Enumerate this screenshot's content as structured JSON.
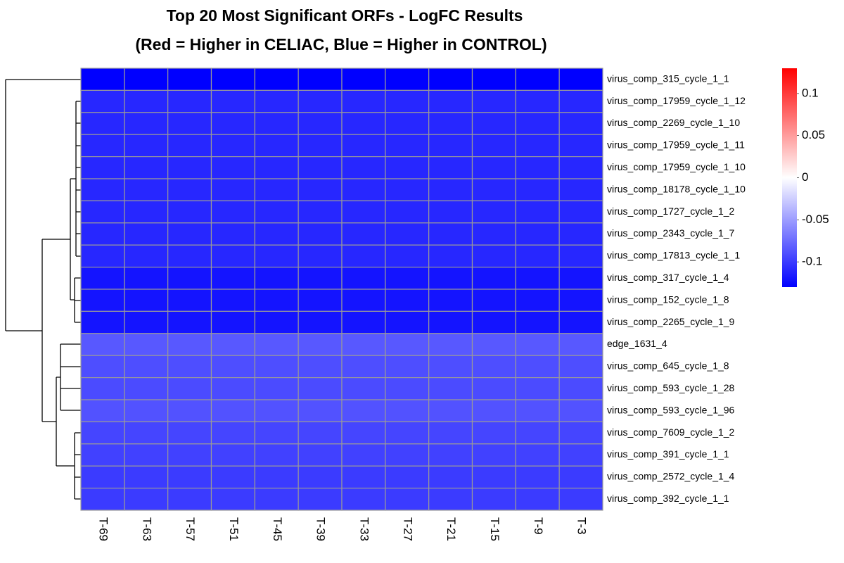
{
  "chart_data": {
    "type": "heatmap",
    "title": "Top 20 Most Significant ORFs - LogFC Results",
    "subtitle": "(Red = Higher in CELIAC, Blue = Higher in CONTROL)",
    "columns": [
      "T-69",
      "T-63",
      "T-57",
      "T-51",
      "T-45",
      "T-39",
      "T-33",
      "T-27",
      "T-21",
      "T-15",
      "T-9",
      "T-3"
    ],
    "rows": [
      "virus_comp_315_cycle_1_1",
      "virus_comp_17959_cycle_1_12",
      "virus_comp_2269_cycle_1_10",
      "virus_comp_17959_cycle_1_11",
      "virus_comp_17959_cycle_1_10",
      "virus_comp_18178_cycle_1_10",
      "virus_comp_1727_cycle_1_2",
      "virus_comp_2343_cycle_1_7",
      "virus_comp_17813_cycle_1_1",
      "virus_comp_317_cycle_1_4",
      "virus_comp_152_cycle_1_8",
      "virus_comp_2265_cycle_1_9",
      "edge_1631_4",
      "virus_comp_645_cycle_1_8",
      "virus_comp_593_cycle_1_28",
      "virus_comp_593_cycle_1_96",
      "virus_comp_7609_cycle_1_2",
      "virus_comp_391_cycle_1_1",
      "virus_comp_2572_cycle_1_4",
      "virus_comp_392_cycle_1_1"
    ],
    "values": [
      [
        -0.13,
        -0.13,
        -0.13,
        -0.13,
        -0.13,
        -0.13,
        -0.13,
        -0.13,
        -0.13,
        -0.13,
        -0.13,
        -0.13
      ],
      [
        -0.11,
        -0.11,
        -0.11,
        -0.11,
        -0.11,
        -0.11,
        -0.11,
        -0.11,
        -0.11,
        -0.11,
        -0.11,
        -0.11
      ],
      [
        -0.11,
        -0.11,
        -0.11,
        -0.11,
        -0.11,
        -0.11,
        -0.11,
        -0.11,
        -0.11,
        -0.11,
        -0.11,
        -0.11
      ],
      [
        -0.11,
        -0.11,
        -0.11,
        -0.11,
        -0.11,
        -0.11,
        -0.11,
        -0.11,
        -0.11,
        -0.11,
        -0.11,
        -0.11
      ],
      [
        -0.11,
        -0.11,
        -0.11,
        -0.11,
        -0.11,
        -0.11,
        -0.11,
        -0.11,
        -0.11,
        -0.11,
        -0.11,
        -0.11
      ],
      [
        -0.11,
        -0.11,
        -0.11,
        -0.11,
        -0.11,
        -0.11,
        -0.11,
        -0.11,
        -0.11,
        -0.11,
        -0.11,
        -0.11
      ],
      [
        -0.11,
        -0.11,
        -0.11,
        -0.11,
        -0.11,
        -0.11,
        -0.11,
        -0.11,
        -0.11,
        -0.11,
        -0.11,
        -0.11
      ],
      [
        -0.11,
        -0.11,
        -0.11,
        -0.11,
        -0.11,
        -0.11,
        -0.11,
        -0.11,
        -0.11,
        -0.11,
        -0.11,
        -0.11
      ],
      [
        -0.11,
        -0.11,
        -0.11,
        -0.11,
        -0.11,
        -0.11,
        -0.11,
        -0.11,
        -0.11,
        -0.11,
        -0.11,
        -0.11
      ],
      [
        -0.12,
        -0.12,
        -0.12,
        -0.12,
        -0.12,
        -0.12,
        -0.12,
        -0.12,
        -0.12,
        -0.12,
        -0.12,
        -0.12
      ],
      [
        -0.12,
        -0.12,
        -0.12,
        -0.12,
        -0.12,
        -0.12,
        -0.12,
        -0.12,
        -0.12,
        -0.12,
        -0.12,
        -0.12
      ],
      [
        -0.12,
        -0.12,
        -0.12,
        -0.12,
        -0.12,
        -0.12,
        -0.12,
        -0.12,
        -0.12,
        -0.12,
        -0.12,
        -0.12
      ],
      [
        -0.085,
        -0.085,
        -0.085,
        -0.085,
        -0.085,
        -0.085,
        -0.085,
        -0.085,
        -0.085,
        -0.085,
        -0.085,
        -0.085
      ],
      [
        -0.09,
        -0.09,
        -0.09,
        -0.09,
        -0.09,
        -0.09,
        -0.09,
        -0.09,
        -0.09,
        -0.09,
        -0.09,
        -0.09
      ],
      [
        -0.092,
        -0.092,
        -0.092,
        -0.092,
        -0.092,
        -0.092,
        -0.092,
        -0.092,
        -0.092,
        -0.092,
        -0.092,
        -0.092
      ],
      [
        -0.088,
        -0.088,
        -0.088,
        -0.088,
        -0.088,
        -0.088,
        -0.088,
        -0.088,
        -0.088,
        -0.088,
        -0.088,
        -0.088
      ],
      [
        -0.095,
        -0.095,
        -0.095,
        -0.095,
        -0.095,
        -0.095,
        -0.095,
        -0.095,
        -0.095,
        -0.095,
        -0.095,
        -0.095
      ],
      [
        -0.097,
        -0.097,
        -0.097,
        -0.097,
        -0.097,
        -0.097,
        -0.097,
        -0.097,
        -0.097,
        -0.097,
        -0.097,
        -0.097
      ],
      [
        -0.1,
        -0.1,
        -0.1,
        -0.1,
        -0.1,
        -0.1,
        -0.1,
        -0.1,
        -0.1,
        -0.1,
        -0.1,
        -0.1
      ],
      [
        -0.1,
        -0.1,
        -0.1,
        -0.1,
        -0.1,
        -0.1,
        -0.1,
        -0.1,
        -0.1,
        -0.1,
        -0.1,
        -0.1
      ]
    ],
    "colors": [
      "#0000ff",
      "#ffffff",
      "#ff0000"
    ],
    "zlim": [
      -0.13,
      0.13
    ],
    "zticks": [
      0.1,
      0.05,
      0,
      -0.05,
      -0.1
    ],
    "cell_border": "#999999"
  }
}
